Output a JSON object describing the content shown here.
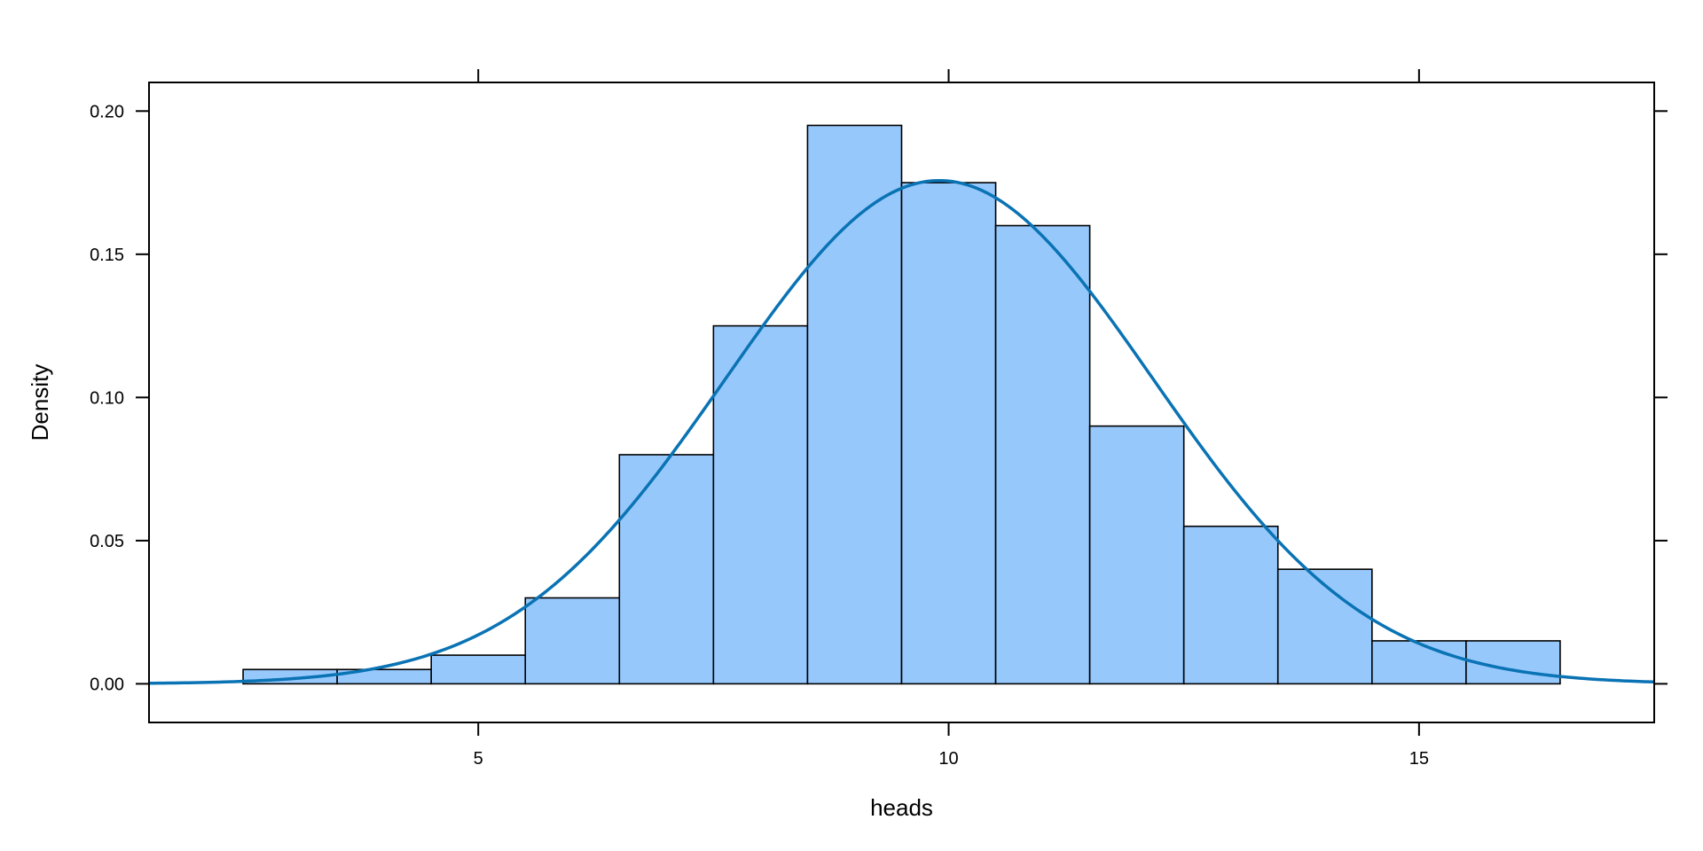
{
  "chart_data": {
    "type": "bar",
    "subtype": "histogram",
    "xlabel": "heads",
    "ylabel": "Density",
    "xlim": [
      1.5,
      17.5
    ],
    "ylim": [
      -0.0135,
      0.21
    ],
    "x_ticks": [
      5,
      10,
      15
    ],
    "x_tick_labels": [
      "5",
      "10",
      "15"
    ],
    "y_ticks": [
      0.0,
      0.05,
      0.1,
      0.15,
      0.2
    ],
    "y_tick_labels": [
      "0.00",
      "0.05",
      "0.10",
      "0.15",
      "0.20"
    ],
    "grid": false,
    "bin_width": 1,
    "bins": [
      {
        "center": 3,
        "density": 0.005
      },
      {
        "center": 4,
        "density": 0.005
      },
      {
        "center": 5,
        "density": 0.01
      },
      {
        "center": 6,
        "density": 0.03
      },
      {
        "center": 7,
        "density": 0.08
      },
      {
        "center": 8,
        "density": 0.125
      },
      {
        "center": 9,
        "density": 0.195
      },
      {
        "center": 10,
        "density": 0.175
      },
      {
        "center": 11,
        "density": 0.16
      },
      {
        "center": 12,
        "density": 0.09
      },
      {
        "center": 13,
        "density": 0.055
      },
      {
        "center": 14,
        "density": 0.04
      },
      {
        "center": 15,
        "density": 0.015
      },
      {
        "center": 16,
        "density": 0.015
      }
    ],
    "density_curve": {
      "type": "normal",
      "mean": 9.9,
      "sd": 2.27,
      "x_range": [
        1.5,
        17.5
      ]
    },
    "colors": {
      "bar_fill": "#96C8FC",
      "bar_stroke": "#000000",
      "curve": "#0A73B4"
    }
  }
}
